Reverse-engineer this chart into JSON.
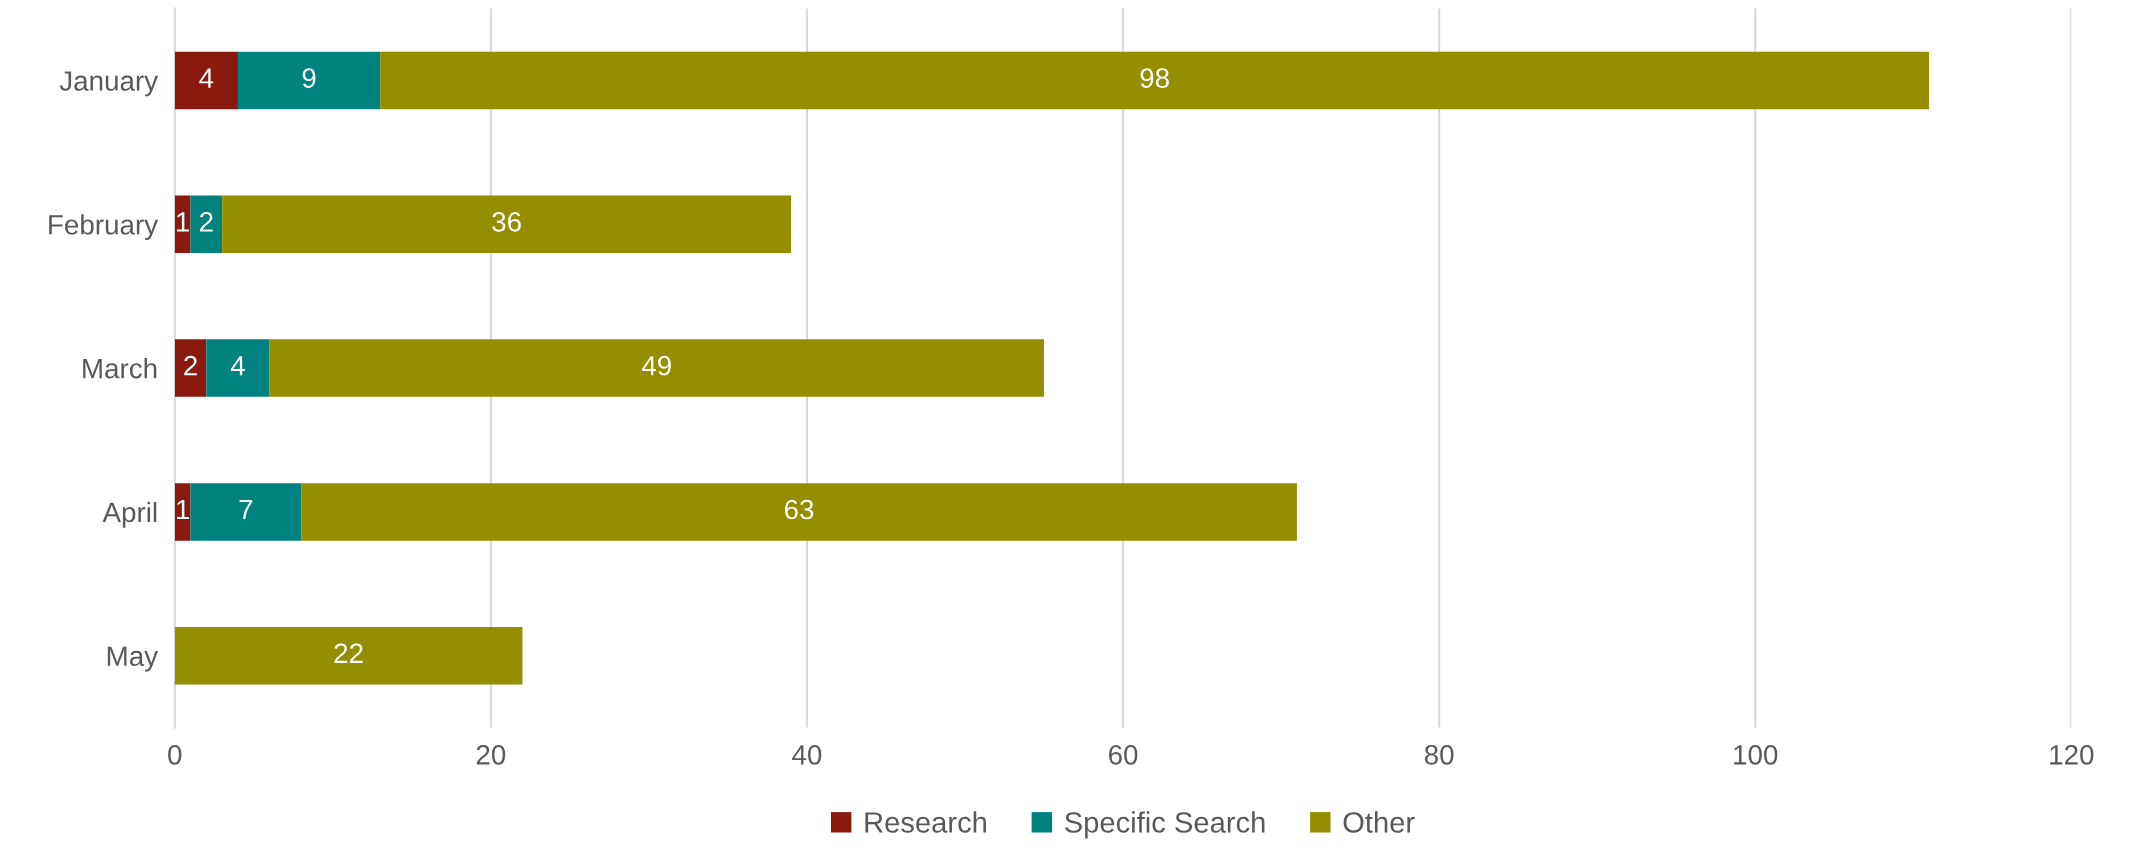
{
  "chart_data": {
    "type": "bar",
    "orientation": "horizontal",
    "stacked": true,
    "categories": [
      "January",
      "February",
      "March",
      "April",
      "May"
    ],
    "series": [
      {
        "name": "Research",
        "color": "#8b1a0e",
        "values": [
          4,
          1,
          2,
          1,
          0
        ],
        "value_labels": [
          "4",
          "1",
          "2",
          "1",
          null
        ]
      },
      {
        "name": "Specific Search",
        "color": "#00827f",
        "values": [
          9,
          2,
          4,
          7,
          0
        ],
        "value_labels": [
          "9",
          "2",
          "4",
          "7",
          null
        ]
      },
      {
        "name": "Other",
        "color": "#938f00",
        "values": [
          98,
          36,
          49,
          63,
          22
        ],
        "value_labels": [
          "98",
          "36",
          "49",
          "63",
          "22"
        ]
      }
    ],
    "xlim": [
      0,
      120
    ],
    "xticks": [
      0,
      20,
      40,
      60,
      80,
      100,
      120
    ],
    "grid": "x",
    "legend": "bottom"
  }
}
